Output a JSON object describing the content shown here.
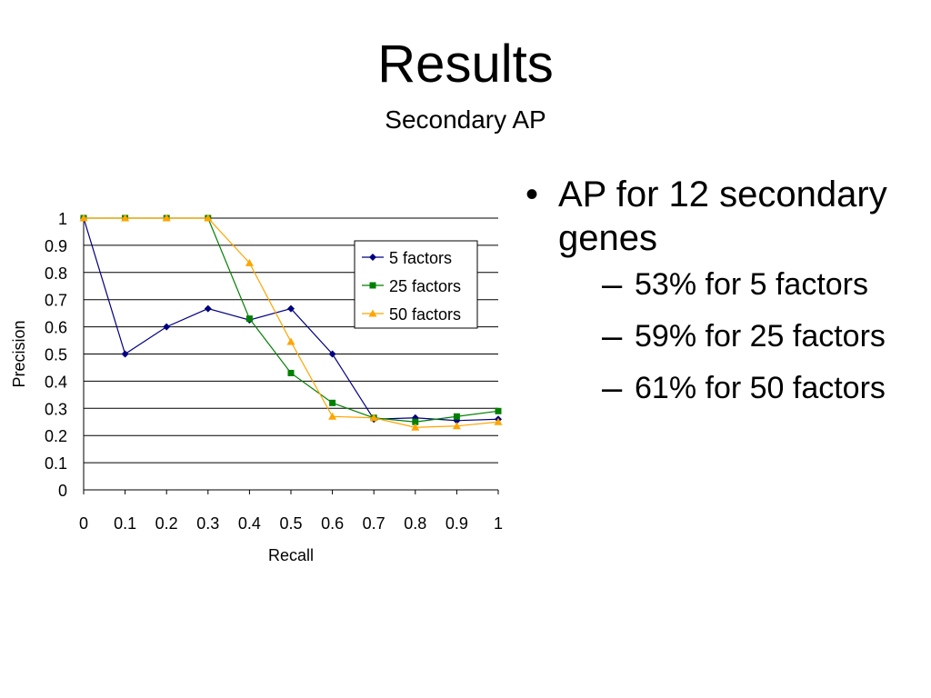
{
  "slide": {
    "title": "Results",
    "subtitle": "Secondary AP"
  },
  "bullets": {
    "main_marker": "•",
    "main": "AP for 12 secondary genes",
    "sub_marker": "–",
    "items": [
      "53% for 5 factors",
      "59% for 25 factors",
      "61% for 50 factors"
    ]
  },
  "chart_data": {
    "type": "line",
    "title": "",
    "xlabel": "Recall",
    "ylabel": "Precision",
    "xlim": [
      0,
      1
    ],
    "ylim": [
      0,
      1
    ],
    "x_ticks": [
      "0",
      "0.1",
      "0.2",
      "0.3",
      "0.4",
      "0.5",
      "0.6",
      "0.7",
      "0.8",
      "0.9",
      "1"
    ],
    "y_ticks": [
      "0",
      "0.1",
      "0.2",
      "0.3",
      "0.4",
      "0.5",
      "0.6",
      "0.7",
      "0.8",
      "0.9",
      "1"
    ],
    "grid": "horizontal",
    "legend_position": "top-right",
    "x": [
      0,
      0.1,
      0.2,
      0.3,
      0.4,
      0.5,
      0.6,
      0.7,
      0.8,
      0.9,
      1
    ],
    "series": [
      {
        "name": "5 factors",
        "color": "#000080",
        "marker": "diamond",
        "values": [
          1.0,
          0.5,
          0.6,
          0.667,
          0.625,
          0.667,
          0.5,
          0.26,
          0.265,
          0.255,
          0.26
        ]
      },
      {
        "name": "25 factors",
        "color": "#008000",
        "marker": "square",
        "values": [
          1.0,
          1.0,
          1.0,
          1.0,
          0.63,
          0.43,
          0.32,
          0.265,
          0.25,
          0.27,
          0.29
        ]
      },
      {
        "name": "50 factors",
        "color": "#FFA500",
        "marker": "triangle",
        "values": [
          1.0,
          1.0,
          1.0,
          1.0,
          0.835,
          0.545,
          0.27,
          0.265,
          0.23,
          0.235,
          0.25
        ]
      }
    ]
  }
}
